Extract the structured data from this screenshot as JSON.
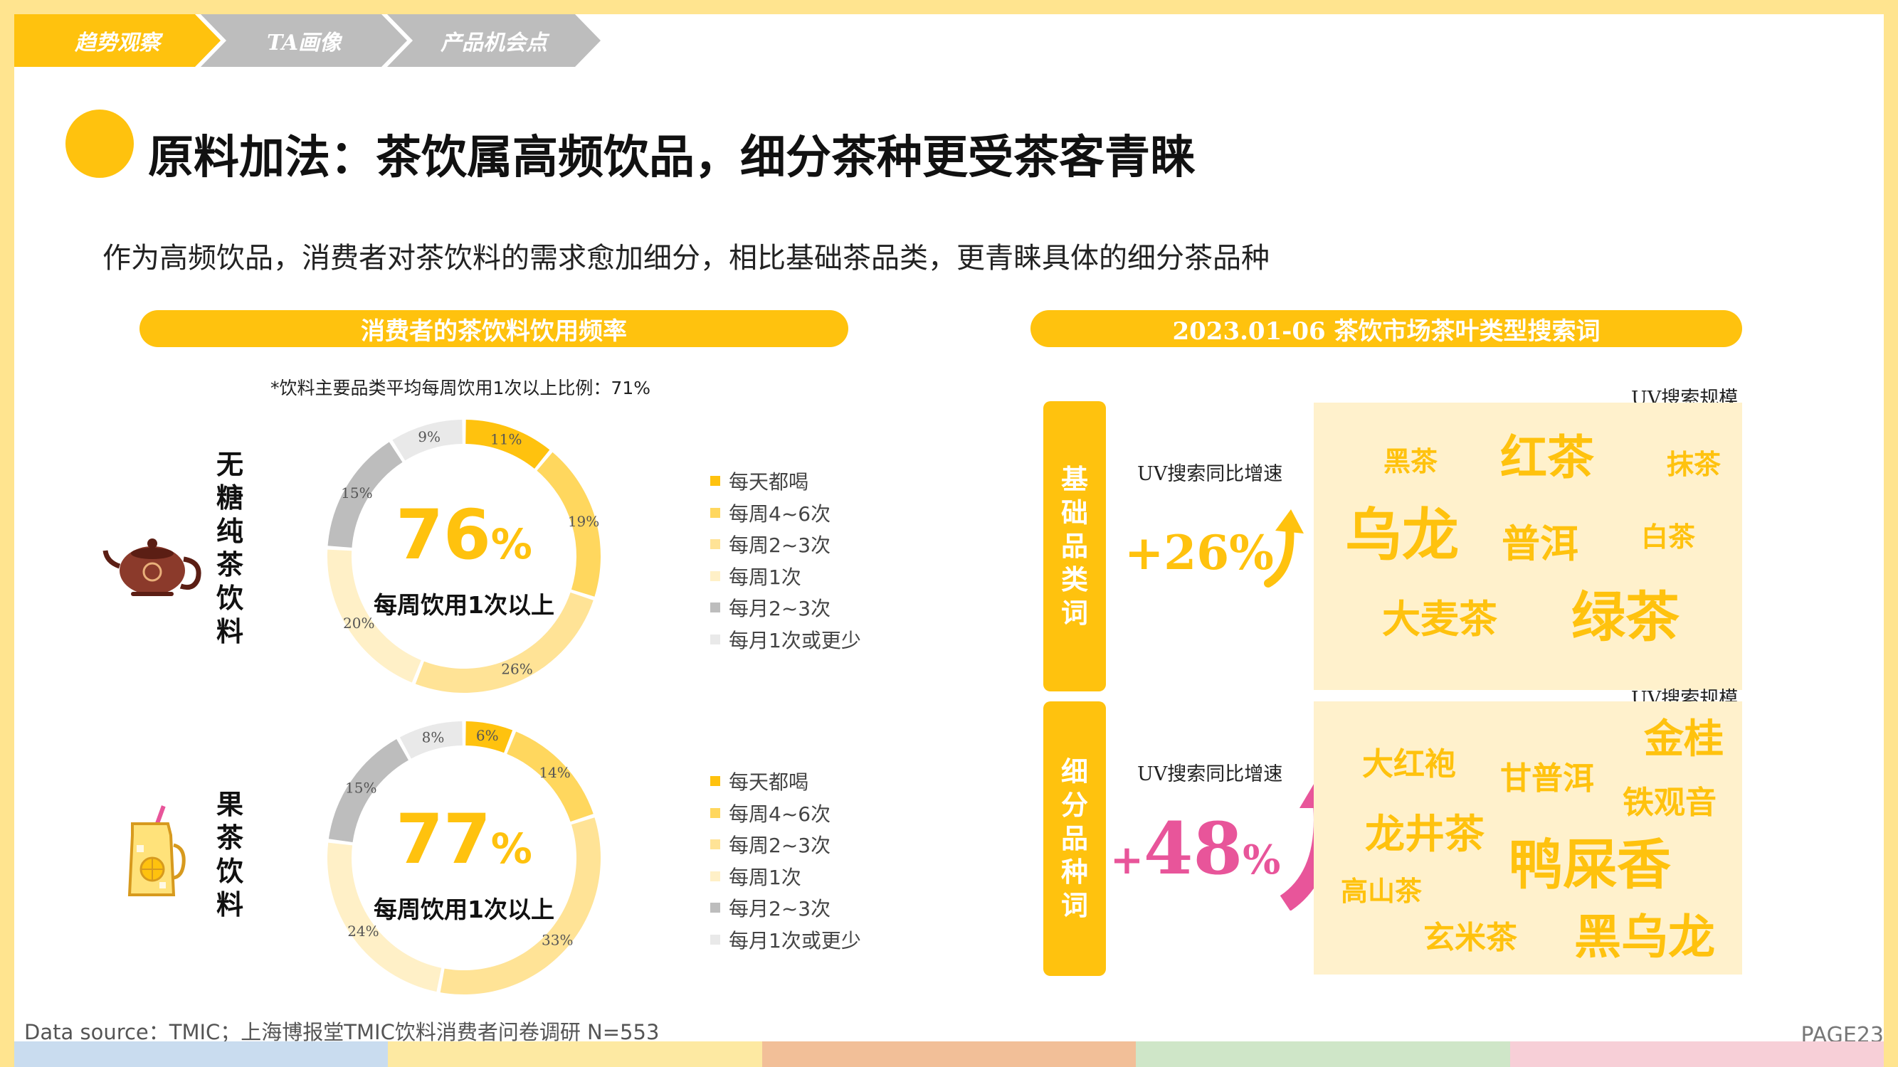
{
  "breadcrumb": [
    "趋势观察",
    "TA画像",
    "产品机会点"
  ],
  "title": "原料加法：茶饮属高频饮品，细分茶种更受茶客青睐",
  "subtitle": "作为高频饮品，消费者对茶饮料的需求愈加细分，相比基础茶品类，更青睐具体的细分茶品种",
  "left_header": "消费者的茶饮料饮用频率",
  "right_header": "2023.01-06 茶饮市场茶叶类型搜索词",
  "note": "*饮料主要品类平均每周饮用1次以上比例：71%",
  "colors": {
    "accent": "#ffc20e",
    "pink": "#e8559a"
  },
  "chart_data": [
    {
      "type": "pie",
      "title": "无糖纯茶饮料",
      "categories": [
        "每天都喝",
        "每周4~6次",
        "每周2~3次",
        "每周1次",
        "每月2~3次",
        "每月1次或更少"
      ],
      "values": [
        11,
        19,
        26,
        20,
        15,
        9
      ],
      "labels": [
        "11%",
        "19%",
        "26%",
        "20%",
        "15%",
        "9%"
      ],
      "colors": [
        "#ffc20e",
        "#ffd75e",
        "#ffe396",
        "#fff0c7",
        "#bdbdbd",
        "#e9e9e9"
      ],
      "center_value": "76",
      "center_unit": "%",
      "center_text": "每周饮用1次以上"
    },
    {
      "type": "pie",
      "title": "果茶饮料",
      "categories": [
        "每天都喝",
        "每周4~6次",
        "每周2~3次",
        "每周1次",
        "每月2~3次",
        "每月1次或更少"
      ],
      "values": [
        6,
        14,
        33,
        24,
        15,
        8
      ],
      "labels": [
        "6%",
        "14%",
        "33%",
        "24%",
        "15%",
        "8%"
      ],
      "colors": [
        "#ffc20e",
        "#ffd75e",
        "#ffe396",
        "#fff0c7",
        "#bdbdbd",
        "#e9e9e9"
      ],
      "center_value": "77",
      "center_unit": "%",
      "center_text": "每周饮用1次以上"
    }
  ],
  "categories": [
    {
      "label": "基础品类词",
      "uv_growth_label": "UV搜索同比增速",
      "growth": "+26%",
      "growth_color": "#ffc20e",
      "scale_label": "UV搜索规模",
      "words": [
        "黑茶",
        "红茶",
        "抹茶",
        "乌龙",
        "普洱",
        "白茶",
        "大麦茶",
        "绿茶"
      ]
    },
    {
      "label": "细分品种词",
      "uv_growth_label": "UV搜索同比增速",
      "growth_sign": "+",
      "growth_num": "48",
      "growth_unit": "%",
      "growth_color": "#e8559a",
      "scale_label": "UV搜索规模",
      "words": [
        "金桂",
        "大红袍",
        "甘普洱",
        "铁观音",
        "龙井茶",
        "鸭屎香",
        "高山茶",
        "玄米茶",
        "黑乌龙"
      ]
    }
  ],
  "footnote": "Data source：TMIC；上海博报堂TMIC饮料消费者问卷调研 N=553",
  "page_number": "PAGE23",
  "bottom_bar_colors": [
    "#c9dcef",
    "#fde9a2",
    "#f2bf98",
    "#cfe6c8",
    "#f7cfd7"
  ]
}
